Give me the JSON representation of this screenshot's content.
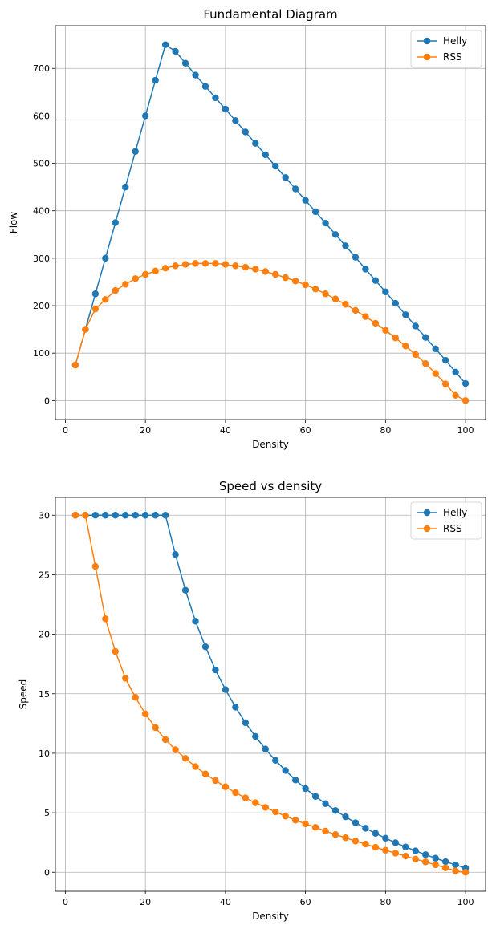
{
  "chart_data": [
    {
      "type": "line",
      "title": "Fundamental Diagram",
      "xlabel": "Density",
      "ylabel": "Flow",
      "xlim": [
        -2.5,
        105
      ],
      "ylim": [
        -40,
        790
      ],
      "xticks": [
        0,
        20,
        40,
        60,
        80,
        100
      ],
      "yticks": [
        0,
        100,
        200,
        300,
        400,
        500,
        600,
        700
      ],
      "grid": true,
      "legend_position": "top-right",
      "x": [
        2.5,
        5,
        7.5,
        10,
        12.5,
        15,
        17.5,
        20,
        22.5,
        25,
        27.5,
        30,
        32.5,
        35,
        37.5,
        40,
        42.5,
        45,
        47.5,
        50,
        52.5,
        55,
        57.5,
        60,
        62.5,
        65,
        67.5,
        70,
        72.5,
        75,
        77.5,
        80,
        82.5,
        85,
        87.5,
        90,
        92.5,
        95,
        97.5,
        100
      ],
      "series": [
        {
          "name": "Helly",
          "color": "#1f77b4",
          "values": [
            75,
            150,
            225,
            300,
            375,
            450,
            525,
            600,
            675,
            750,
            736,
            711,
            686,
            662,
            638,
            614,
            590,
            566,
            542,
            518,
            494,
            470,
            446,
            422,
            398,
            374,
            350,
            326,
            302,
            277,
            253,
            229,
            205,
            181,
            157,
            133,
            109,
            85,
            60,
            36
          ]
        },
        {
          "name": "RSS",
          "color": "#ff7f0e",
          "values": [
            75,
            150,
            193,
            213,
            232,
            245,
            257,
            266,
            273,
            279,
            284,
            287,
            289,
            289,
            289,
            287,
            284,
            281,
            277,
            272,
            266,
            259,
            252,
            244,
            235,
            225,
            214,
            203,
            190,
            177,
            163,
            148,
            132,
            115,
            97,
            78,
            57,
            35,
            11,
            0
          ]
        }
      ]
    },
    {
      "type": "line",
      "title": "Speed vs density",
      "xlabel": "Density",
      "ylabel": "Speed",
      "xlim": [
        -2.5,
        105
      ],
      "ylim": [
        -1.6,
        31.5
      ],
      "xticks": [
        0,
        20,
        40,
        60,
        80,
        100
      ],
      "yticks": [
        0,
        5,
        10,
        15,
        20,
        25,
        30
      ],
      "grid": true,
      "legend_position": "top-right",
      "x": [
        2.5,
        5,
        7.5,
        10,
        12.5,
        15,
        17.5,
        20,
        22.5,
        25,
        27.5,
        30,
        32.5,
        35,
        37.5,
        40,
        42.5,
        45,
        47.5,
        50,
        52.5,
        55,
        57.5,
        60,
        62.5,
        65,
        67.5,
        70,
        72.5,
        75,
        77.5,
        80,
        82.5,
        85,
        87.5,
        90,
        92.5,
        95,
        97.5,
        100
      ],
      "series": [
        {
          "name": "Helly",
          "color": "#1f77b4",
          "values": [
            30,
            30,
            30,
            30,
            30,
            30,
            30,
            30,
            30,
            30,
            26.7,
            23.7,
            21.1,
            18.95,
            17.0,
            15.35,
            13.88,
            12.56,
            11.41,
            10.35,
            9.4,
            8.55,
            7.75,
            7.03,
            6.37,
            5.76,
            5.19,
            4.66,
            4.16,
            3.7,
            3.27,
            2.86,
            2.48,
            2.13,
            1.8,
            1.48,
            1.18,
            0.89,
            0.62,
            0.36
          ]
        },
        {
          "name": "RSS",
          "color": "#ff7f0e",
          "values": [
            30,
            30,
            25.7,
            21.3,
            18.55,
            16.3,
            14.7,
            13.3,
            12.15,
            11.15,
            10.3,
            9.57,
            8.88,
            8.26,
            7.7,
            7.18,
            6.69,
            6.25,
            5.84,
            5.45,
            5.07,
            4.72,
            4.38,
            4.07,
            3.77,
            3.46,
            3.17,
            2.9,
            2.62,
            2.37,
            2.1,
            1.85,
            1.6,
            1.36,
            1.11,
            0.87,
            0.62,
            0.37,
            0.11,
            0.0
          ]
        }
      ]
    }
  ]
}
